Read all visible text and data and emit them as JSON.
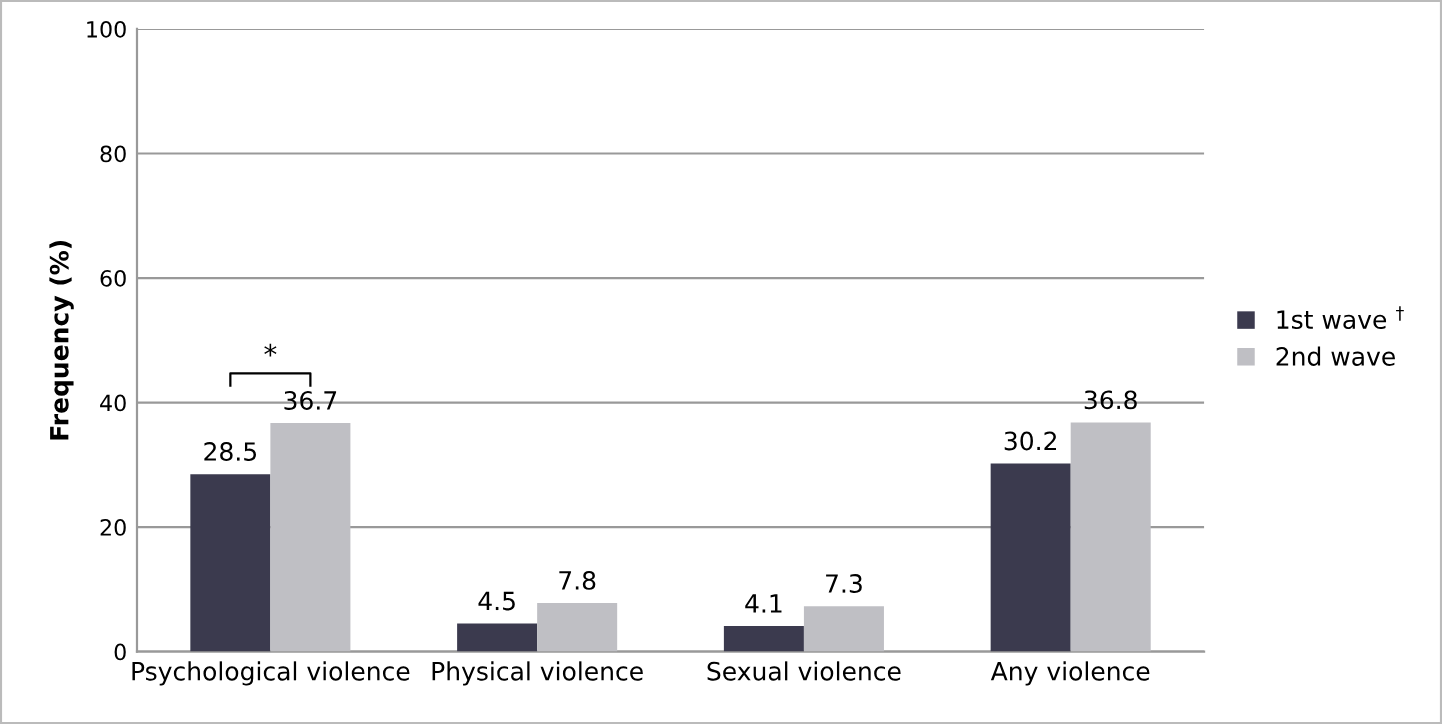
{
  "chart_data": {
    "type": "bar",
    "ylabel": "Frequency (%)",
    "categories": [
      "Psychological violence",
      "Physical violence",
      "Sexual violence",
      "Any violence"
    ],
    "series": [
      {
        "name": "1st wave $^{†}$",
        "color": "#3b3a4e",
        "values": [
          28.5,
          4.5,
          4.1,
          30.2
        ]
      },
      {
        "name": "2nd wave",
        "color": "#bfbfc4",
        "values": [
          36.7,
          7.8,
          7.3,
          36.8
        ]
      }
    ],
    "ylim": [
      0,
      100
    ],
    "yticks": [
      0,
      20,
      40,
      60,
      80,
      100
    ],
    "grid": "y",
    "legend": "right",
    "data_labels": true,
    "annotations": [
      "*"
    ]
  }
}
